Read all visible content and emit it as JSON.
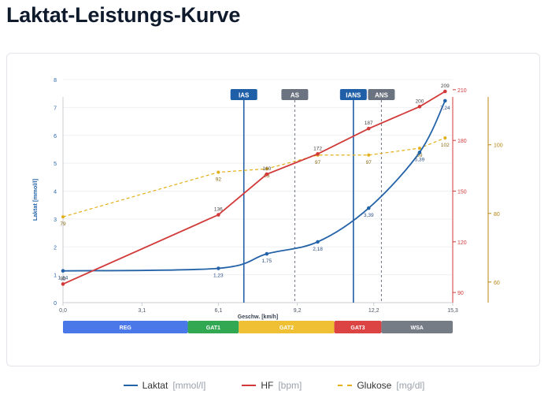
{
  "page": {
    "title": "Laktat-Leistungs-Kurve"
  },
  "colors": {
    "lactate": "#2563a8",
    "hr": "#d23a3a",
    "glucose": "#e3b019",
    "ylabel_left": "#2563a8",
    "axis_right_hr": "#d23a3a",
    "axis_right_glucose": "#b58510"
  },
  "legend": [
    {
      "key": "lactate",
      "name": "Laktat",
      "unit": "[mmol/l]",
      "color": "#2563a8",
      "style": "solid"
    },
    {
      "key": "hr",
      "name": "HF",
      "unit": "[bpm]",
      "color": "#d23a3a",
      "style": "solid"
    },
    {
      "key": "glucose",
      "name": "Glukose",
      "unit": "[mg/dl]",
      "color": "#e3b019",
      "style": "dashed"
    }
  ],
  "chart_data": {
    "type": "line",
    "xlabel": "Geschw. [km/h]",
    "ylabel": "Laktat [mmol/l]",
    "xlim": [
      0,
      15.3
    ],
    "x_ticks": [
      {
        "value": 0,
        "label": "0,0"
      },
      {
        "value": 3.1,
        "label": "3,1"
      },
      {
        "value": 6.1,
        "label": "6,1"
      },
      {
        "value": 9.2,
        "label": "9,2"
      },
      {
        "value": 12.2,
        "label": "12,2"
      },
      {
        "value": 15.3,
        "label": "15,3"
      }
    ],
    "ylim_left": [
      0,
      8
    ],
    "y_ticks_left": [
      "0",
      "1",
      "2",
      "3",
      "4",
      "5",
      "6",
      "7",
      "8"
    ],
    "ylim_hr": [
      84,
      216
    ],
    "y_ticks_hr": [
      {
        "value": 90,
        "label": "90"
      },
      {
        "value": 120,
        "label": "120"
      },
      {
        "value": 150,
        "label": "150"
      },
      {
        "value": 180,
        "label": "180"
      },
      {
        "value": 210,
        "label": "210"
      }
    ],
    "ylim_glucose": [
      54,
      119
    ],
    "y_ticks_glucose": [
      {
        "value": 60,
        "label": "60"
      },
      {
        "value": 80,
        "label": "80"
      },
      {
        "value": 100,
        "label": "100"
      }
    ],
    "series": [
      {
        "key": "lactate",
        "name": "Laktat",
        "axis": "left",
        "smooth": true,
        "points": [
          {
            "x": 0,
            "y": 1.14,
            "label": "1,14"
          },
          {
            "x": 6.1,
            "y": 1.23,
            "label": "1,23"
          },
          {
            "x": 8,
            "y": 1.75,
            "label": "1,75"
          },
          {
            "x": 10,
            "y": 2.18,
            "label": "2,18"
          },
          {
            "x": 12,
            "y": 3.39,
            "label": "3,39"
          },
          {
            "x": 14,
            "y": 5.39,
            "label": "5,39"
          },
          {
            "x": 15,
            "y": 7.24,
            "label": "7,24"
          }
        ]
      },
      {
        "key": "hr",
        "name": "HF",
        "axis": "hr",
        "points": [
          {
            "x": 0,
            "y": 95,
            "label": "95"
          },
          {
            "x": 6.1,
            "y": 136,
            "label": "136"
          },
          {
            "x": 8,
            "y": 160,
            "label": "160"
          },
          {
            "x": 10,
            "y": 172,
            "label": "172"
          },
          {
            "x": 12,
            "y": 187,
            "label": "187"
          },
          {
            "x": 14,
            "y": 200,
            "label": "200"
          },
          {
            "x": 15,
            "y": 209,
            "label": "209"
          }
        ]
      },
      {
        "key": "glucose",
        "name": "Glukose",
        "axis": "glucose",
        "dashed": true,
        "points": [
          {
            "x": 0,
            "y": 79,
            "label": "79"
          },
          {
            "x": 6.1,
            "y": 92,
            "label": "92"
          },
          {
            "x": 8,
            "y": 93,
            "label": "93"
          },
          {
            "x": 10,
            "y": 97,
            "label": "97"
          },
          {
            "x": 12,
            "y": 97,
            "label": "97"
          },
          {
            "x": 14,
            "y": 99,
            "label": "99"
          },
          {
            "x": 15,
            "y": 102,
            "label": "102"
          }
        ]
      }
    ],
    "thresholds": [
      {
        "label": "IAS",
        "x": 7.1,
        "style": "solid",
        "color": "#1f5fa8"
      },
      {
        "label": "AS",
        "x": 9.1,
        "style": "dashed",
        "color": "#6b7280"
      },
      {
        "label": "IANS",
        "x": 11.4,
        "style": "solid",
        "color": "#1f5fa8"
      },
      {
        "label": "ANS",
        "x": 12.5,
        "style": "dashed",
        "color": "#6b7280"
      }
    ],
    "zones": [
      {
        "label": "REG",
        "from": 0,
        "to": 4.9,
        "color": "#4a78e8"
      },
      {
        "label": "GAT1",
        "from": 4.9,
        "to": 6.9,
        "color": "#33a852"
      },
      {
        "label": "GAT2",
        "from": 6.9,
        "to": 10.65,
        "color": "#efbf34"
      },
      {
        "label": "GAT3",
        "from": 10.65,
        "to": 12.5,
        "color": "#dc4343"
      },
      {
        "label": "WSA",
        "from": 12.5,
        "to": 15.3,
        "color": "#767c86"
      }
    ]
  }
}
